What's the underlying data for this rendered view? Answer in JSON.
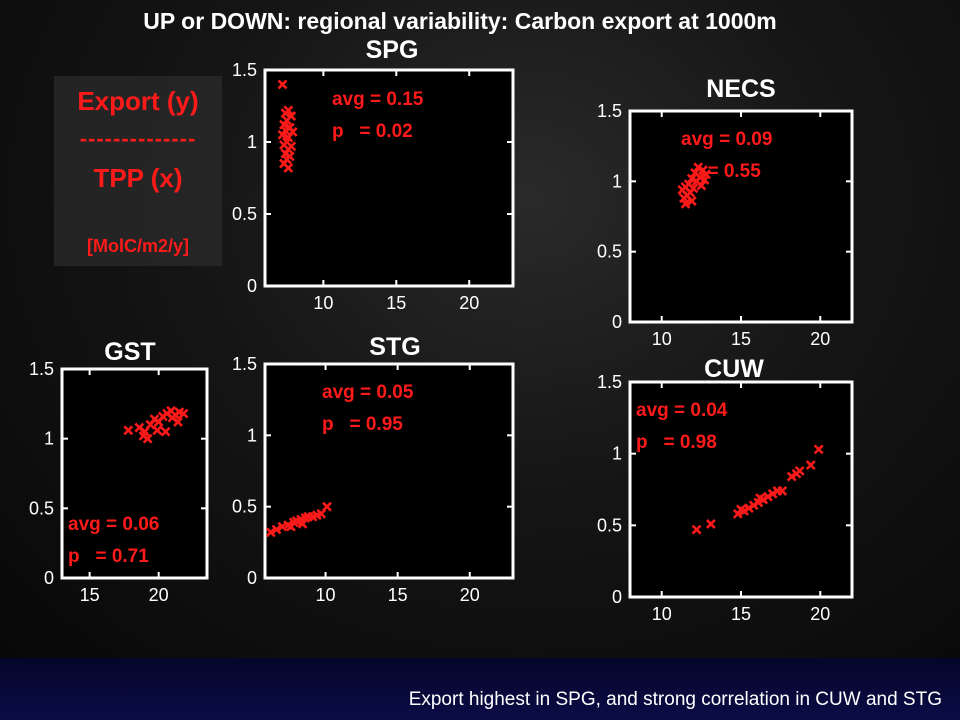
{
  "slide": {
    "title": "UP or DOWN: regional variability: Carbon export at 1000m",
    "footer": "Export highest in SPG, and strong correlation in CUW and STG",
    "legend": {
      "line1": "Export (y)",
      "line2": "--------------",
      "line3": "TPP (x)",
      "line4": "[MolC/m2/y]"
    },
    "colors": {
      "marker": "#ff1a1a",
      "axis": "#ffffff",
      "background": "#000000"
    }
  },
  "chart_data": [
    {
      "type": "scatter",
      "title": "SPG",
      "xlim": [
        6,
        23
      ],
      "ylim": [
        0,
        1.5
      ],
      "xticks": [
        10,
        15,
        20
      ],
      "yticks": [
        0,
        0.5,
        1,
        1.5
      ],
      "ytick_labels": [
        "0",
        "0.5",
        "1",
        "1.5"
      ],
      "annotations": [
        "avg = 0.15",
        "p   = 0.02"
      ],
      "annotation_pos": "top-right",
      "series": [
        {
          "marker": "x",
          "points": [
            [
              7.2,
              1.4
            ],
            [
              7.6,
              1.22
            ],
            [
              7.4,
              1.2
            ],
            [
              7.8,
              1.18
            ],
            [
              7.5,
              1.15
            ],
            [
              7.3,
              1.12
            ],
            [
              7.7,
              1.1
            ],
            [
              7.4,
              1.08
            ],
            [
              7.9,
              1.07
            ],
            [
              7.2,
              1.05
            ],
            [
              7.6,
              1.03
            ],
            [
              7.5,
              1.0
            ],
            [
              7.3,
              0.98
            ],
            [
              7.8,
              0.97
            ],
            [
              7.6,
              0.95
            ],
            [
              7.4,
              0.92
            ],
            [
              7.7,
              0.9
            ],
            [
              7.5,
              0.88
            ],
            [
              7.3,
              0.85
            ],
            [
              7.6,
              0.82
            ]
          ]
        }
      ]
    },
    {
      "type": "scatter",
      "title": "NECS",
      "xlim": [
        8,
        22
      ],
      "ylim": [
        0,
        1.5
      ],
      "xticks": [
        10,
        15,
        20
      ],
      "yticks": [
        0,
        0.5,
        1,
        1.5
      ],
      "ytick_labels": [
        "0",
        "0.5",
        "1",
        "1.5"
      ],
      "annotations": [
        "avg = 0.09",
        "     = 0.55"
      ],
      "annotation_pos": "top",
      "series": [
        {
          "marker": "x",
          "points": [
            [
              12.3,
              1.1
            ],
            [
              12.6,
              1.08
            ],
            [
              12.1,
              1.06
            ],
            [
              12.8,
              1.05
            ],
            [
              12.4,
              1.03
            ],
            [
              11.9,
              1.02
            ],
            [
              12.7,
              1.01
            ],
            [
              12.2,
              1.0
            ],
            [
              11.7,
              0.98
            ],
            [
              12.5,
              0.97
            ],
            [
              11.5,
              0.96
            ],
            [
              12.0,
              0.95
            ],
            [
              11.3,
              0.94
            ],
            [
              11.8,
              0.92
            ],
            [
              11.6,
              0.9
            ],
            [
              11.4,
              0.88
            ],
            [
              11.9,
              0.86
            ],
            [
              11.5,
              0.84
            ]
          ]
        }
      ]
    },
    {
      "type": "scatter",
      "title": "GST",
      "xlim": [
        13,
        23.5
      ],
      "ylim": [
        0,
        1.5
      ],
      "xticks": [
        15,
        20
      ],
      "yticks": [
        0,
        0.5,
        1,
        1.5
      ],
      "ytick_labels": [
        "0",
        "0.5",
        "1",
        "1.5"
      ],
      "annotations": [
        "avg = 0.06",
        "p   = 0.71"
      ],
      "annotation_pos": "bottom-left",
      "series": [
        {
          "marker": "x",
          "points": [
            [
              17.8,
              1.06
            ],
            [
              18.6,
              1.08
            ],
            [
              19.0,
              1.05
            ],
            [
              19.4,
              1.1
            ],
            [
              19.7,
              1.14
            ],
            [
              20.0,
              1.12
            ],
            [
              20.3,
              1.16
            ],
            [
              20.6,
              1.18
            ],
            [
              20.9,
              1.2
            ],
            [
              21.2,
              1.17
            ],
            [
              21.5,
              1.19
            ],
            [
              21.8,
              1.18
            ],
            [
              19.2,
              1.0
            ],
            [
              18.9,
              1.02
            ],
            [
              19.9,
              1.06
            ],
            [
              20.5,
              1.05
            ],
            [
              21.0,
              1.15
            ],
            [
              21.4,
              1.12
            ]
          ]
        }
      ]
    },
    {
      "type": "scatter",
      "title": "STG",
      "xlim": [
        5.8,
        23
      ],
      "ylim": [
        0,
        1.5
      ],
      "xticks": [
        10,
        15,
        20
      ],
      "yticks": [
        0,
        0.5,
        1,
        1.5
      ],
      "ytick_labels": [
        "0",
        "0.5",
        "1",
        "1.5"
      ],
      "annotations": [
        "avg = 0.05",
        "p   = 0.95"
      ],
      "annotation_pos": "top",
      "series": [
        {
          "marker": "x",
          "points": [
            [
              6.2,
              0.32
            ],
            [
              6.6,
              0.34
            ],
            [
              7.0,
              0.36
            ],
            [
              7.4,
              0.37
            ],
            [
              7.8,
              0.39
            ],
            [
              8.0,
              0.4
            ],
            [
              8.3,
              0.41
            ],
            [
              8.6,
              0.42
            ],
            [
              8.8,
              0.43
            ],
            [
              9.1,
              0.43
            ],
            [
              9.4,
              0.44
            ],
            [
              9.7,
              0.45
            ],
            [
              8.4,
              0.38
            ],
            [
              7.6,
              0.36
            ],
            [
              10.1,
              0.5
            ]
          ]
        }
      ]
    },
    {
      "type": "scatter",
      "title": "CUW",
      "xlim": [
        8,
        22
      ],
      "ylim": [
        0,
        1.5
      ],
      "xticks": [
        10,
        15,
        20
      ],
      "yticks": [
        0,
        0.5,
        1,
        1.5
      ],
      "ytick_labels": [
        "0",
        "0.5",
        "1",
        "1.5"
      ],
      "annotations": [
        "avg = 0.04",
        "p   = 0.98"
      ],
      "annotation_pos": "top-left",
      "series": [
        {
          "marker": "x",
          "points": [
            [
              12.2,
              0.47
            ],
            [
              13.1,
              0.51
            ],
            [
              14.8,
              0.58
            ],
            [
              15.2,
              0.6
            ],
            [
              15.5,
              0.62
            ],
            [
              15.8,
              0.64
            ],
            [
              16.1,
              0.66
            ],
            [
              16.4,
              0.68
            ],
            [
              16.7,
              0.7
            ],
            [
              17.0,
              0.72
            ],
            [
              17.3,
              0.74
            ],
            [
              17.6,
              0.74
            ],
            [
              18.2,
              0.84
            ],
            [
              18.5,
              0.86
            ],
            [
              18.7,
              0.88
            ],
            [
              19.4,
              0.92
            ],
            [
              19.9,
              1.03
            ],
            [
              16.2,
              0.69
            ],
            [
              15.0,
              0.61
            ]
          ]
        }
      ]
    }
  ]
}
